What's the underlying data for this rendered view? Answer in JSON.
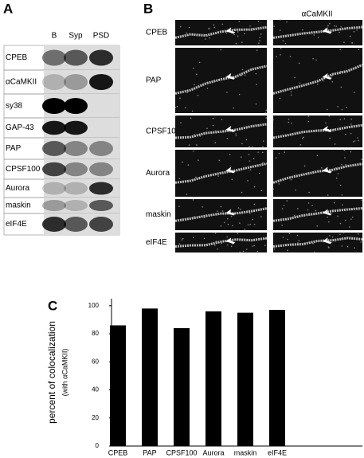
{
  "panel_a": {
    "label": "A",
    "lanes": [
      "B",
      "Syp",
      "PSD"
    ],
    "rows": [
      "CPEB",
      "αCaMKII",
      "sy38",
      "GAP-43",
      "PAP",
      "CPSF100",
      "Aurora",
      "maskin",
      "eIF4E"
    ]
  },
  "panel_b": {
    "label": "B",
    "header": "αCaMKII",
    "rows": [
      "CPEB",
      "PAP",
      "CPSF100",
      "Aurora",
      "maskin",
      "eIF4E"
    ]
  },
  "chart_data": {
    "type": "bar",
    "panel_label": "C",
    "y_label": [
      "percent of colocalization",
      "(with αCaMKII)"
    ],
    "categories": [
      "CPEB",
      "PAP",
      "CPSF100",
      "Aurora",
      "maskin",
      "eIF4E"
    ],
    "values": [
      86,
      98,
      84,
      96,
      95,
      97
    ],
    "color": "#000000",
    "ylim": [
      0,
      105
    ],
    "yticks": [
      0,
      20,
      40,
      60,
      80,
      100
    ],
    "grid": false
  }
}
